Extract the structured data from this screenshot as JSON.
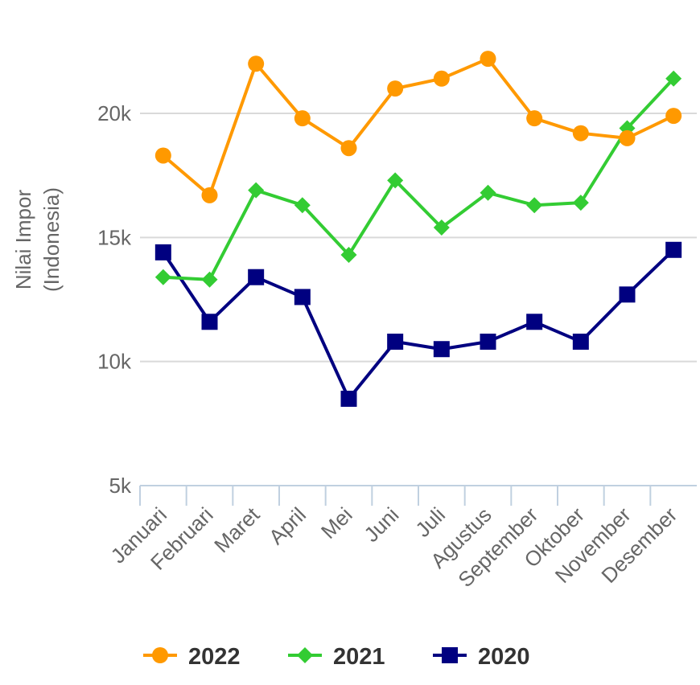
{
  "chart_data": {
    "type": "line",
    "title": "",
    "xlabel": "",
    "ylabel_lines": [
      "Nilai Impor",
      "(Indonesia)"
    ],
    "ylim": [
      5000,
      23000
    ],
    "yticks": [
      5000,
      10000,
      15000,
      20000
    ],
    "ytick_labels": [
      "5k",
      "10k",
      "15k",
      "20k"
    ],
    "grid": true,
    "legend_position": "bottom",
    "categories": [
      "Januari",
      "Februari",
      "Maret",
      "April",
      "Mei",
      "Juni",
      "Juli",
      "Agustus",
      "September",
      "Oktober",
      "November",
      "Desember"
    ],
    "series": [
      {
        "name": "2022",
        "color": "#FF9900",
        "marker": "circle",
        "values": [
          18300,
          16700,
          22000,
          19800,
          18600,
          21000,
          21400,
          22200,
          19800,
          19200,
          19000,
          19900
        ]
      },
      {
        "name": "2021",
        "color": "#33CC33",
        "marker": "diamond",
        "values": [
          13400,
          13300,
          16900,
          16300,
          14300,
          17300,
          15400,
          16800,
          16300,
          16400,
          19400,
          21400
        ]
      },
      {
        "name": "2020",
        "color": "#000080",
        "marker": "square",
        "values": [
          14400,
          11600,
          13400,
          12600,
          8500,
          10800,
          10500,
          10800,
          11600,
          10800,
          12700,
          14500
        ]
      }
    ]
  }
}
